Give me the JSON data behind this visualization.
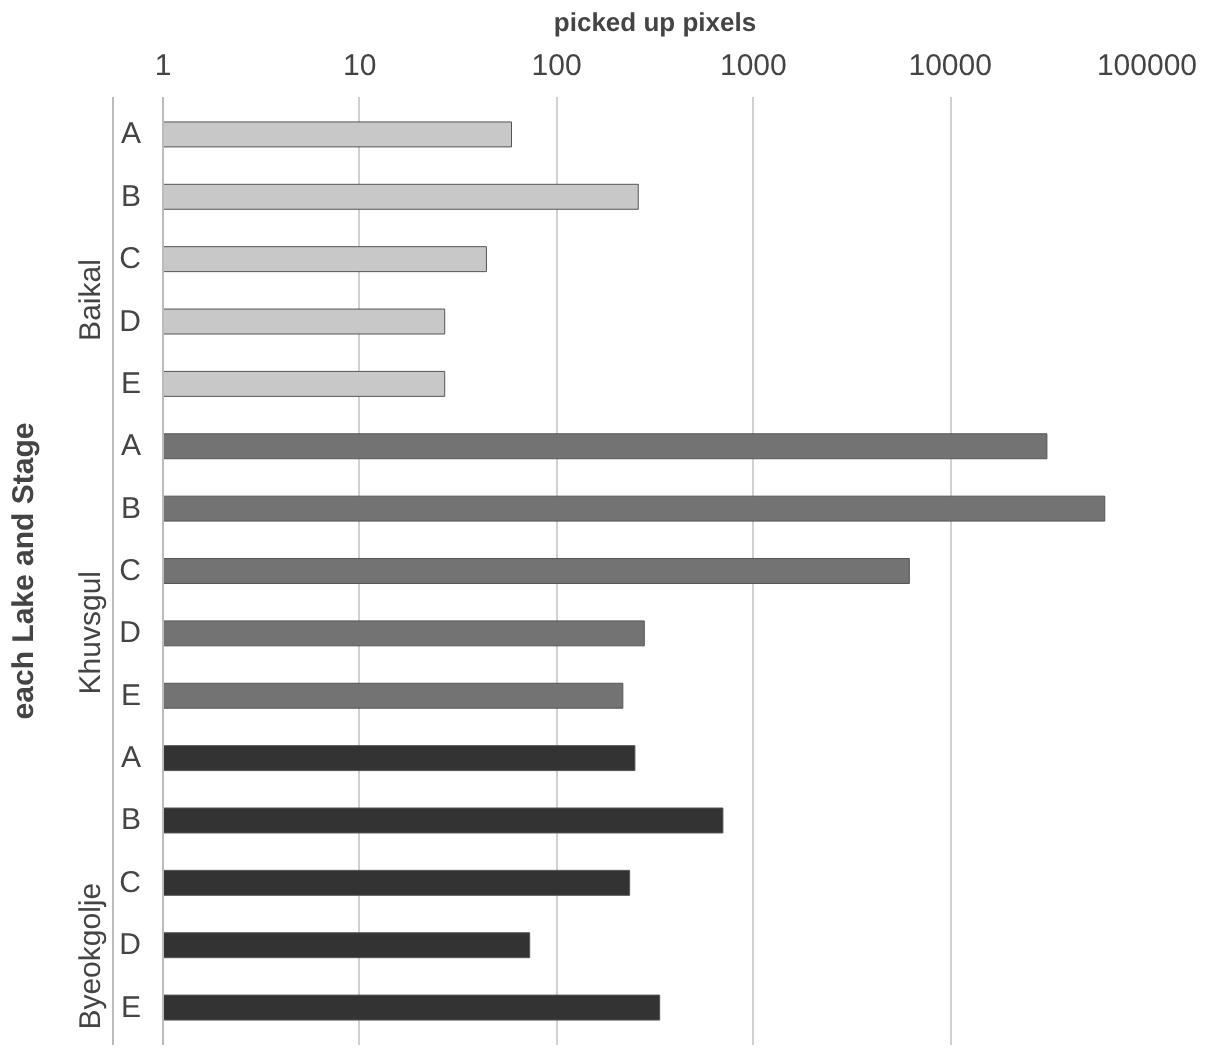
{
  "chart_data": {
    "type": "bar",
    "orientation": "horizontal",
    "log": "x",
    "xlabel": "picked up pixels",
    "ylabel": "each Lake and Stage",
    "categories": [
      "A",
      "B",
      "C",
      "D",
      "E",
      "A",
      "B",
      "C",
      "D",
      "E",
      "A",
      "B",
      "C",
      "D",
      "E"
    ],
    "series": [
      {
        "name": "Baikal",
        "color": "#c8c8c8",
        "values": [
          59,
          260,
          44,
          27,
          27,
          null,
          null,
          null,
          null,
          null,
          null,
          null,
          null,
          null,
          null
        ]
      },
      {
        "name": "Khuvsgul",
        "color": "#737373",
        "values": [
          null,
          null,
          null,
          null,
          null,
          31000,
          61000,
          6200,
          279,
          217,
          null,
          null,
          null,
          null,
          null
        ]
      },
      {
        "name": "Byeokgolje",
        "color": "#333333",
        "values": [
          null,
          null,
          null,
          null,
          null,
          null,
          null,
          null,
          null,
          null,
          250,
          700,
          235,
          73,
          334
        ]
      }
    ],
    "xlim": [
      1,
      100000
    ],
    "xticks": [
      1,
      10,
      100,
      1000,
      10000,
      100000
    ],
    "grid": "x"
  }
}
